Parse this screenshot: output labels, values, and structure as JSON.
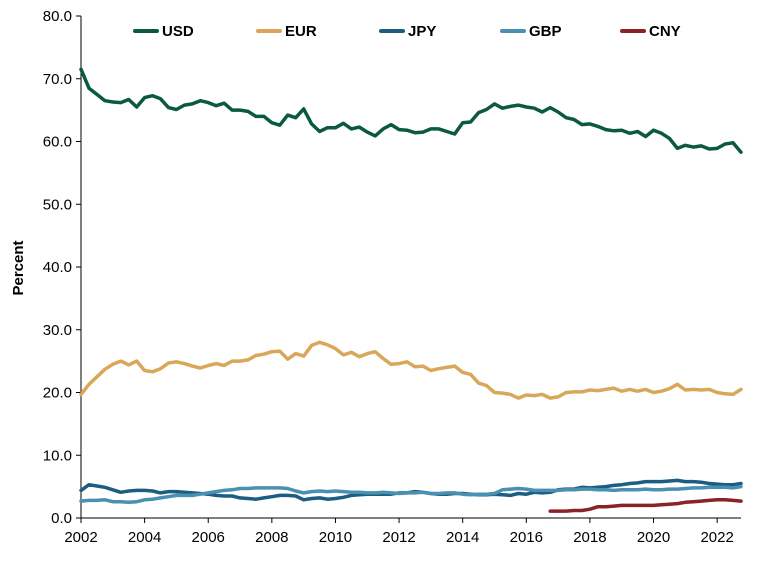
{
  "chart_data": {
    "type": "line",
    "title": "",
    "xlabel": "",
    "ylabel": "Percent",
    "xlim": [
      2002,
      2022.75
    ],
    "ylim": [
      0,
      80
    ],
    "y_ticks": [
      "0.0",
      "10.0",
      "20.0",
      "30.0",
      "40.0",
      "50.0",
      "60.0",
      "70.0",
      "80.0"
    ],
    "x_ticks": [
      "2002",
      "2004",
      "2006",
      "2008",
      "2010",
      "2012",
      "2014",
      "2016",
      "2018",
      "2020",
      "2022"
    ],
    "grid": false,
    "legend": "top",
    "series": [
      {
        "name": "USD",
        "color": "#0b5a3e",
        "x": [
          2002,
          2002.25,
          2002.5,
          2002.75,
          2003,
          2003.25,
          2003.5,
          2003.75,
          2004,
          2004.25,
          2004.5,
          2004.75,
          2005,
          2005.25,
          2005.5,
          2005.75,
          2006,
          2006.25,
          2006.5,
          2006.75,
          2007,
          2007.25,
          2007.5,
          2007.75,
          2008,
          2008.25,
          2008.5,
          2008.75,
          2009,
          2009.25,
          2009.5,
          2009.75,
          2010,
          2010.25,
          2010.5,
          2010.75,
          2011,
          2011.25,
          2011.5,
          2011.75,
          2012,
          2012.25,
          2012.5,
          2012.75,
          2013,
          2013.25,
          2013.5,
          2013.75,
          2014,
          2014.25,
          2014.5,
          2014.75,
          2015,
          2015.25,
          2015.5,
          2015.75,
          2016,
          2016.25,
          2016.5,
          2016.75,
          2017,
          2017.25,
          2017.5,
          2017.75,
          2018,
          2018.25,
          2018.5,
          2018.75,
          2019,
          2019.25,
          2019.5,
          2019.75,
          2020,
          2020.25,
          2020.5,
          2020.75,
          2021,
          2021.25,
          2021.5,
          2021.75,
          2022,
          2022.25,
          2022.5,
          2022.75
        ],
        "values": [
          71.5,
          68.5,
          67.5,
          66.5,
          66.3,
          66.2,
          66.7,
          65.5,
          67.0,
          67.3,
          66.8,
          65.4,
          65.1,
          65.8,
          66.0,
          66.5,
          66.2,
          65.7,
          66.1,
          65.0,
          65.0,
          64.8,
          64.0,
          64.0,
          63.0,
          62.6,
          64.2,
          63.8,
          65.2,
          62.8,
          61.6,
          62.2,
          62.2,
          62.9,
          62.0,
          62.3,
          61.5,
          60.9,
          62.0,
          62.7,
          61.9,
          61.8,
          61.4,
          61.5,
          62.0,
          62.0,
          61.6,
          61.2,
          63.0,
          63.1,
          64.6,
          65.1,
          66.0,
          65.3,
          65.6,
          65.8,
          65.5,
          65.3,
          64.7,
          65.4,
          64.7,
          63.8,
          63.5,
          62.7,
          62.8,
          62.4,
          61.9,
          61.7,
          61.8,
          61.3,
          61.6,
          60.8,
          61.8,
          61.3,
          60.5,
          58.9,
          59.4,
          59.1,
          59.3,
          58.8,
          58.9,
          59.6,
          59.8,
          58.3
        ]
      },
      {
        "name": "EUR",
        "color": "#d9a75a",
        "x": [
          2002,
          2002.25,
          2002.5,
          2002.75,
          2003,
          2003.25,
          2003.5,
          2003.75,
          2004,
          2004.25,
          2004.5,
          2004.75,
          2005,
          2005.25,
          2005.5,
          2005.75,
          2006,
          2006.25,
          2006.5,
          2006.75,
          2007,
          2007.25,
          2007.5,
          2007.75,
          2008,
          2008.25,
          2008.5,
          2008.75,
          2009,
          2009.25,
          2009.5,
          2009.75,
          2010,
          2010.25,
          2010.5,
          2010.75,
          2011,
          2011.25,
          2011.5,
          2011.75,
          2012,
          2012.25,
          2012.5,
          2012.75,
          2013,
          2013.25,
          2013.5,
          2013.75,
          2014,
          2014.25,
          2014.5,
          2014.75,
          2015,
          2015.25,
          2015.5,
          2015.75,
          2016,
          2016.25,
          2016.5,
          2016.75,
          2017,
          2017.25,
          2017.5,
          2017.75,
          2018,
          2018.25,
          2018.5,
          2018.75,
          2019,
          2019.25,
          2019.5,
          2019.75,
          2020,
          2020.25,
          2020.5,
          2020.75,
          2021,
          2021.25,
          2021.5,
          2021.75,
          2022,
          2022.25,
          2022.5,
          2022.75
        ],
        "values": [
          19.7,
          21.3,
          22.5,
          23.7,
          24.5,
          25.0,
          24.4,
          25.0,
          23.5,
          23.3,
          23.8,
          24.7,
          24.9,
          24.6,
          24.2,
          23.9,
          24.3,
          24.6,
          24.3,
          25.0,
          25.0,
          25.2,
          25.9,
          26.1,
          26.5,
          26.6,
          25.3,
          26.2,
          25.8,
          27.5,
          28.0,
          27.6,
          27.0,
          26.0,
          26.4,
          25.7,
          26.2,
          26.5,
          25.4,
          24.5,
          24.6,
          24.9,
          24.1,
          24.2,
          23.5,
          23.8,
          24.0,
          24.2,
          23.2,
          22.9,
          21.5,
          21.1,
          20.0,
          19.9,
          19.7,
          19.1,
          19.6,
          19.5,
          19.7,
          19.1,
          19.3,
          20.0,
          20.1,
          20.1,
          20.4,
          20.3,
          20.5,
          20.7,
          20.2,
          20.5,
          20.2,
          20.5,
          20.0,
          20.2,
          20.6,
          21.3,
          20.4,
          20.5,
          20.4,
          20.5,
          20.0,
          19.8,
          19.7,
          20.5
        ]
      },
      {
        "name": "JPY",
        "color": "#1c5d82",
        "x": [
          2002,
          2002.25,
          2002.5,
          2002.75,
          2003,
          2003.25,
          2003.5,
          2003.75,
          2004,
          2004.25,
          2004.5,
          2004.75,
          2005,
          2005.25,
          2005.5,
          2005.75,
          2006,
          2006.25,
          2006.5,
          2006.75,
          2007,
          2007.25,
          2007.5,
          2007.75,
          2008,
          2008.25,
          2008.5,
          2008.75,
          2009,
          2009.25,
          2009.5,
          2009.75,
          2010,
          2010.25,
          2010.5,
          2010.75,
          2011,
          2011.25,
          2011.5,
          2011.75,
          2012,
          2012.25,
          2012.5,
          2012.75,
          2013,
          2013.25,
          2013.5,
          2013.75,
          2014,
          2014.25,
          2014.5,
          2014.75,
          2015,
          2015.25,
          2015.5,
          2015.75,
          2016,
          2016.25,
          2016.5,
          2016.75,
          2017,
          2017.25,
          2017.5,
          2017.75,
          2018,
          2018.25,
          2018.5,
          2018.75,
          2019,
          2019.25,
          2019.5,
          2019.75,
          2020,
          2020.25,
          2020.5,
          2020.75,
          2021,
          2021.25,
          2021.5,
          2021.75,
          2022,
          2022.25,
          2022.5,
          2022.75
        ],
        "values": [
          4.4,
          5.3,
          5.1,
          4.9,
          4.5,
          4.1,
          4.3,
          4.4,
          4.4,
          4.3,
          4.0,
          4.2,
          4.2,
          4.1,
          4.0,
          3.9,
          3.8,
          3.6,
          3.5,
          3.5,
          3.2,
          3.1,
          3.0,
          3.2,
          3.4,
          3.6,
          3.6,
          3.5,
          2.9,
          3.1,
          3.2,
          3.0,
          3.1,
          3.3,
          3.6,
          3.7,
          3.8,
          3.8,
          3.8,
          3.8,
          4.0,
          4.0,
          4.2,
          4.1,
          3.9,
          3.8,
          3.8,
          3.9,
          3.9,
          3.8,
          3.7,
          3.7,
          3.8,
          3.7,
          3.6,
          3.9,
          3.8,
          4.1,
          4.0,
          4.1,
          4.5,
          4.6,
          4.6,
          4.9,
          4.8,
          4.9,
          5.0,
          5.2,
          5.3,
          5.5,
          5.6,
          5.8,
          5.8,
          5.8,
          5.9,
          6.0,
          5.8,
          5.8,
          5.7,
          5.5,
          5.4,
          5.3,
          5.3,
          5.5
        ]
      },
      {
        "name": "GBP",
        "color": "#4a90b0",
        "x": [
          2002,
          2002.25,
          2002.5,
          2002.75,
          2003,
          2003.25,
          2003.5,
          2003.75,
          2004,
          2004.25,
          2004.5,
          2004.75,
          2005,
          2005.25,
          2005.5,
          2005.75,
          2006,
          2006.25,
          2006.5,
          2006.75,
          2007,
          2007.25,
          2007.5,
          2007.75,
          2008,
          2008.25,
          2008.5,
          2008.75,
          2009,
          2009.25,
          2009.5,
          2009.75,
          2010,
          2010.25,
          2010.5,
          2010.75,
          2011,
          2011.25,
          2011.5,
          2011.75,
          2012,
          2012.25,
          2012.5,
          2012.75,
          2013,
          2013.25,
          2013.5,
          2013.75,
          2014,
          2014.25,
          2014.5,
          2014.75,
          2015,
          2015.25,
          2015.5,
          2015.75,
          2016,
          2016.25,
          2016.5,
          2016.75,
          2017,
          2017.25,
          2017.5,
          2017.75,
          2018,
          2018.25,
          2018.5,
          2018.75,
          2019,
          2019.25,
          2019.5,
          2019.75,
          2020,
          2020.25,
          2020.5,
          2020.75,
          2021,
          2021.25,
          2021.5,
          2021.75,
          2022,
          2022.25,
          2022.5,
          2022.75
        ],
        "values": [
          2.7,
          2.8,
          2.8,
          2.9,
          2.6,
          2.6,
          2.5,
          2.6,
          2.9,
          3.0,
          3.2,
          3.4,
          3.6,
          3.6,
          3.6,
          3.8,
          4.0,
          4.2,
          4.4,
          4.5,
          4.7,
          4.7,
          4.8,
          4.8,
          4.8,
          4.8,
          4.7,
          4.3,
          4.0,
          4.2,
          4.3,
          4.2,
          4.3,
          4.2,
          4.1,
          4.1,
          4.0,
          4.0,
          4.1,
          4.0,
          3.9,
          4.0,
          4.0,
          4.1,
          3.9,
          3.9,
          4.0,
          4.0,
          3.8,
          3.7,
          3.8,
          3.8,
          3.9,
          4.5,
          4.6,
          4.7,
          4.6,
          4.4,
          4.4,
          4.4,
          4.4,
          4.5,
          4.5,
          4.6,
          4.6,
          4.5,
          4.5,
          4.4,
          4.5,
          4.5,
          4.5,
          4.6,
          4.5,
          4.5,
          4.6,
          4.6,
          4.7,
          4.8,
          4.8,
          4.9,
          4.9,
          4.9,
          4.8,
          5.0
        ]
      },
      {
        "name": "CNY",
        "color": "#8a2328",
        "x": [
          2016.75,
          2017,
          2017.25,
          2017.5,
          2017.75,
          2018,
          2018.25,
          2018.5,
          2018.75,
          2019,
          2019.25,
          2019.5,
          2019.75,
          2020,
          2020.25,
          2020.5,
          2020.75,
          2021,
          2021.25,
          2021.5,
          2021.75,
          2022,
          2022.25,
          2022.5,
          2022.75
        ],
        "values": [
          1.1,
          1.1,
          1.1,
          1.2,
          1.2,
          1.4,
          1.8,
          1.8,
          1.9,
          2.0,
          2.0,
          2.0,
          2.0,
          2.0,
          2.1,
          2.2,
          2.3,
          2.5,
          2.6,
          2.7,
          2.8,
          2.9,
          2.9,
          2.8,
          2.7
        ]
      }
    ]
  }
}
